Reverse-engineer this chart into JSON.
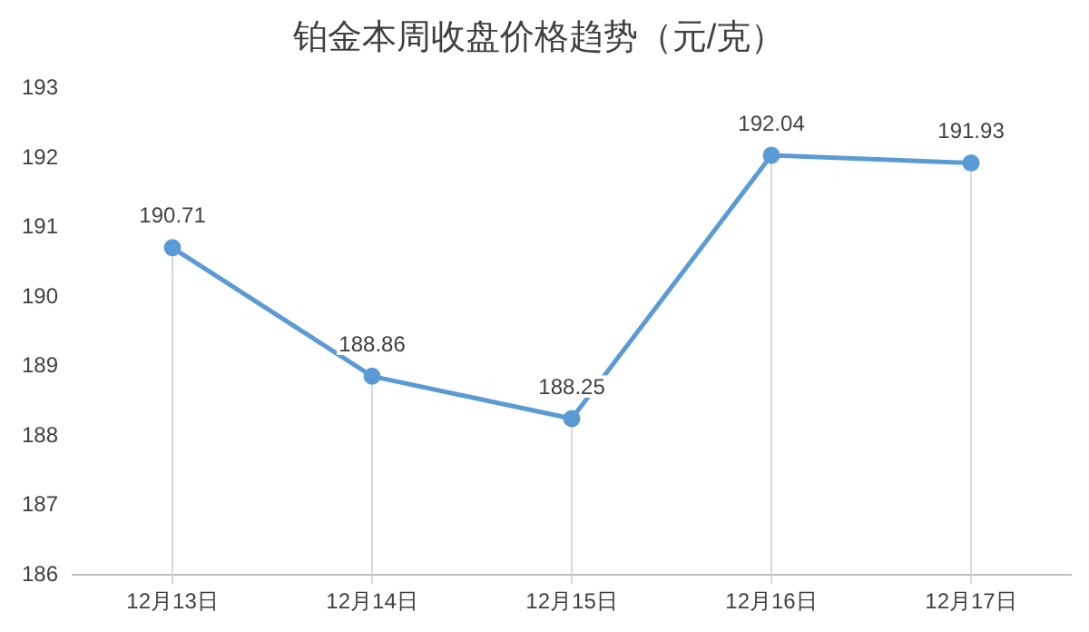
{
  "chart_data": {
    "type": "line",
    "title": "铂金本周收盘价格趋势（元/克）",
    "categories": [
      "12月13日",
      "12月14日",
      "12月15日",
      "12月16日",
      "12月17日"
    ],
    "series": [
      {
        "color": "#5b9bd5",
        "values": [
          190.71,
          188.86,
          188.25,
          192.04,
          191.93
        ]
      }
    ],
    "ylim": [
      186,
      193
    ],
    "yticks": [
      186,
      187,
      188,
      189,
      190,
      191,
      192,
      193
    ],
    "data_labels": true,
    "marker": "circle",
    "legend": false,
    "grid": "x"
  }
}
